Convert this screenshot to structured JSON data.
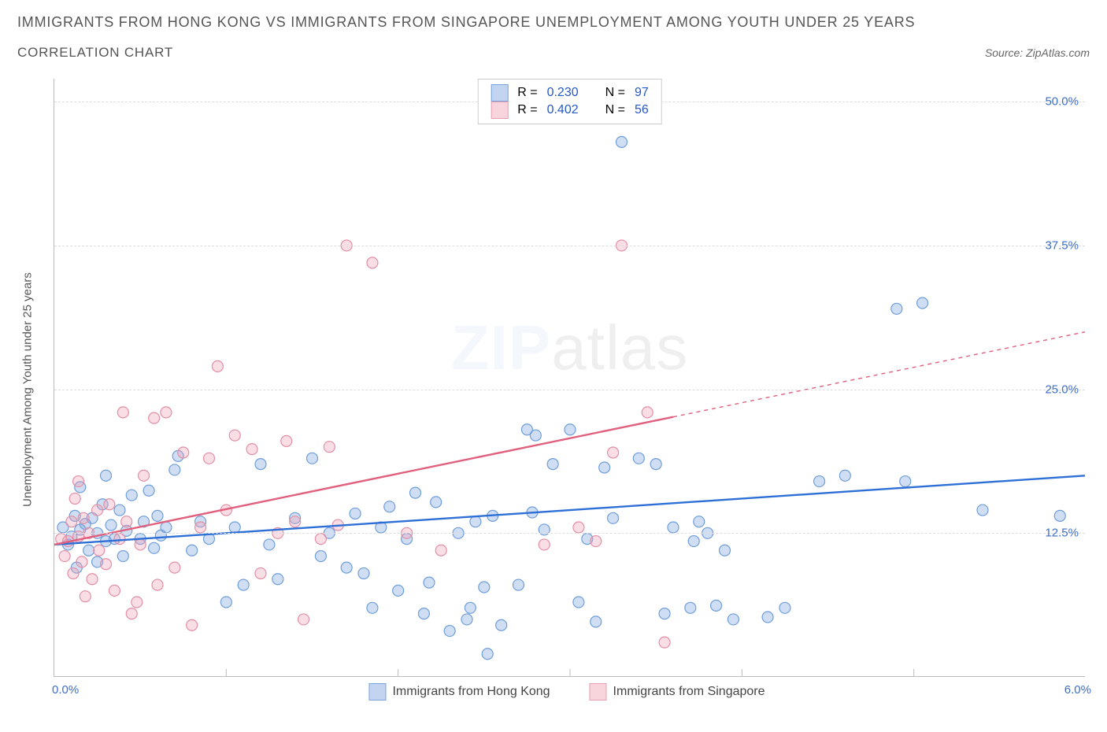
{
  "header": {
    "title_line1": "IMMIGRANTS FROM HONG KONG VS IMMIGRANTS FROM SINGAPORE UNEMPLOYMENT AMONG YOUTH UNDER 25 YEARS",
    "title_line2": "CORRELATION CHART",
    "source": "Source: ZipAtlas.com"
  },
  "chart": {
    "type": "scatter",
    "xlim": [
      0.0,
      6.0
    ],
    "ylim": [
      0.0,
      52.0
    ],
    "y_ticks": [
      12.5,
      25.0,
      37.5,
      50.0
    ],
    "y_tick_labels": [
      "12.5%",
      "25.0%",
      "37.5%",
      "50.0%"
    ],
    "x_min_label": "0.0%",
    "x_max_label": "6.0%",
    "y_axis_label": "Unemployment Among Youth under 25 years",
    "background_color": "#ffffff",
    "grid_color": "#dddddd",
    "axis_color": "#bbbbbb",
    "marker_radius": 7,
    "marker_stroke_width": 1.2,
    "trend_line_width": 2.4,
    "series": [
      {
        "key": "hk",
        "label": "Immigrants from Hong Kong",
        "fill": "rgba(120,160,220,0.35)",
        "stroke": "#6f9edb",
        "trend_color": "#2d6fd6",
        "R": "0.230",
        "N": "97",
        "trend": {
          "x1": 0.0,
          "y1": 11.5,
          "x2": 6.0,
          "y2": 17.5,
          "dashed_after_x": null
        },
        "points": [
          [
            0.05,
            13.0
          ],
          [
            0.08,
            11.5
          ],
          [
            0.1,
            12.2
          ],
          [
            0.12,
            14.0
          ],
          [
            0.13,
            9.5
          ],
          [
            0.15,
            12.8
          ],
          [
            0.15,
            16.5
          ],
          [
            0.18,
            13.3
          ],
          [
            0.2,
            11.0
          ],
          [
            0.22,
            13.8
          ],
          [
            0.25,
            10.0
          ],
          [
            0.25,
            12.5
          ],
          [
            0.28,
            15.0
          ],
          [
            0.3,
            17.5
          ],
          [
            0.3,
            11.8
          ],
          [
            0.33,
            13.2
          ],
          [
            0.35,
            12.0
          ],
          [
            0.38,
            14.5
          ],
          [
            0.4,
            10.5
          ],
          [
            0.42,
            12.7
          ],
          [
            0.45,
            15.8
          ],
          [
            0.5,
            12.0
          ],
          [
            0.52,
            13.5
          ],
          [
            0.55,
            16.2
          ],
          [
            0.58,
            11.2
          ],
          [
            0.6,
            14.0
          ],
          [
            0.62,
            12.3
          ],
          [
            0.65,
            13.0
          ],
          [
            0.7,
            18.0
          ],
          [
            0.72,
            19.2
          ],
          [
            0.8,
            11.0
          ],
          [
            0.85,
            13.5
          ],
          [
            0.9,
            12.0
          ],
          [
            1.0,
            6.5
          ],
          [
            1.05,
            13.0
          ],
          [
            1.1,
            8.0
          ],
          [
            1.2,
            18.5
          ],
          [
            1.25,
            11.5
          ],
          [
            1.3,
            8.5
          ],
          [
            1.4,
            13.8
          ],
          [
            1.5,
            19.0
          ],
          [
            1.55,
            10.5
          ],
          [
            1.6,
            12.5
          ],
          [
            1.7,
            9.5
          ],
          [
            1.75,
            14.2
          ],
          [
            1.8,
            9.0
          ],
          [
            1.85,
            6.0
          ],
          [
            1.9,
            13.0
          ],
          [
            1.95,
            14.8
          ],
          [
            2.0,
            7.5
          ],
          [
            2.05,
            12.0
          ],
          [
            2.1,
            16.0
          ],
          [
            2.15,
            5.5
          ],
          [
            2.18,
            8.2
          ],
          [
            2.22,
            15.2
          ],
          [
            2.3,
            4.0
          ],
          [
            2.35,
            12.5
          ],
          [
            2.4,
            5.0
          ],
          [
            2.42,
            6.0
          ],
          [
            2.45,
            13.5
          ],
          [
            2.5,
            7.8
          ],
          [
            2.52,
            2.0
          ],
          [
            2.55,
            14.0
          ],
          [
            2.6,
            4.5
          ],
          [
            2.7,
            8.0
          ],
          [
            2.75,
            21.5
          ],
          [
            2.78,
            14.3
          ],
          [
            2.8,
            21.0
          ],
          [
            2.85,
            12.8
          ],
          [
            2.9,
            18.5
          ],
          [
            3.0,
            21.5
          ],
          [
            3.05,
            6.5
          ],
          [
            3.1,
            12.0
          ],
          [
            3.15,
            4.8
          ],
          [
            3.2,
            18.2
          ],
          [
            3.25,
            13.8
          ],
          [
            3.3,
            46.5
          ],
          [
            3.4,
            19.0
          ],
          [
            3.5,
            18.5
          ],
          [
            3.55,
            5.5
          ],
          [
            3.7,
            6.0
          ],
          [
            3.72,
            11.8
          ],
          [
            3.75,
            13.5
          ],
          [
            3.8,
            12.5
          ],
          [
            3.85,
            6.2
          ],
          [
            3.9,
            11.0
          ],
          [
            3.95,
            5.0
          ],
          [
            4.15,
            5.2
          ],
          [
            4.25,
            6.0
          ],
          [
            4.45,
            17.0
          ],
          [
            4.6,
            17.5
          ],
          [
            4.9,
            32.0
          ],
          [
            5.05,
            32.5
          ],
          [
            5.4,
            14.5
          ],
          [
            5.85,
            14.0
          ],
          [
            4.95,
            17.0
          ],
          [
            3.6,
            13.0
          ]
        ]
      },
      {
        "key": "sg",
        "label": "Immigrants from Singapore",
        "fill": "rgba(240,160,180,0.35)",
        "stroke": "#e38fa5",
        "trend_color": "#e0607e",
        "R": "0.402",
        "N": "56",
        "trend": {
          "x1": 0.0,
          "y1": 11.5,
          "x2": 6.0,
          "y2": 30.0,
          "dashed_after_x": 3.6
        },
        "points": [
          [
            0.04,
            12.0
          ],
          [
            0.06,
            10.5
          ],
          [
            0.08,
            11.8
          ],
          [
            0.1,
            13.5
          ],
          [
            0.11,
            9.0
          ],
          [
            0.12,
            15.5
          ],
          [
            0.14,
            12.2
          ],
          [
            0.14,
            17.0
          ],
          [
            0.16,
            10.0
          ],
          [
            0.17,
            13.8
          ],
          [
            0.18,
            7.0
          ],
          [
            0.2,
            12.5
          ],
          [
            0.22,
            8.5
          ],
          [
            0.25,
            14.5
          ],
          [
            0.26,
            11.0
          ],
          [
            0.3,
            9.8
          ],
          [
            0.32,
            15.0
          ],
          [
            0.35,
            7.5
          ],
          [
            0.38,
            12.0
          ],
          [
            0.4,
            23.0
          ],
          [
            0.42,
            13.5
          ],
          [
            0.45,
            5.5
          ],
          [
            0.48,
            6.5
          ],
          [
            0.5,
            11.5
          ],
          [
            0.52,
            17.5
          ],
          [
            0.58,
            22.5
          ],
          [
            0.6,
            8.0
          ],
          [
            0.65,
            23.0
          ],
          [
            0.7,
            9.5
          ],
          [
            0.75,
            19.5
          ],
          [
            0.8,
            4.5
          ],
          [
            0.85,
            13.0
          ],
          [
            0.9,
            19.0
          ],
          [
            0.95,
            27.0
          ],
          [
            1.0,
            14.5
          ],
          [
            1.05,
            21.0
          ],
          [
            1.15,
            19.8
          ],
          [
            1.2,
            9.0
          ],
          [
            1.3,
            12.5
          ],
          [
            1.35,
            20.5
          ],
          [
            1.4,
            13.5
          ],
          [
            1.45,
            5.0
          ],
          [
            1.55,
            12.0
          ],
          [
            1.6,
            20.0
          ],
          [
            1.65,
            13.2
          ],
          [
            1.7,
            37.5
          ],
          [
            1.85,
            36.0
          ],
          [
            2.05,
            12.5
          ],
          [
            2.85,
            11.5
          ],
          [
            3.15,
            11.8
          ],
          [
            3.25,
            19.5
          ],
          [
            3.3,
            37.5
          ],
          [
            3.45,
            23.0
          ],
          [
            3.55,
            3.0
          ],
          [
            3.05,
            13.0
          ],
          [
            2.25,
            11.0
          ]
        ]
      }
    ],
    "legend_top": {
      "rows": [
        {
          "swatch": "blue",
          "r_label": "R =",
          "r_val_key": "0",
          "n_label": "N =",
          "n_val_key": "0"
        },
        {
          "swatch": "pink",
          "r_label": "R =",
          "r_val_key": "1",
          "n_label": "N =",
          "n_val_key": "1"
        }
      ]
    },
    "watermark": {
      "zip": "ZIP",
      "atlas": "atlas"
    }
  }
}
